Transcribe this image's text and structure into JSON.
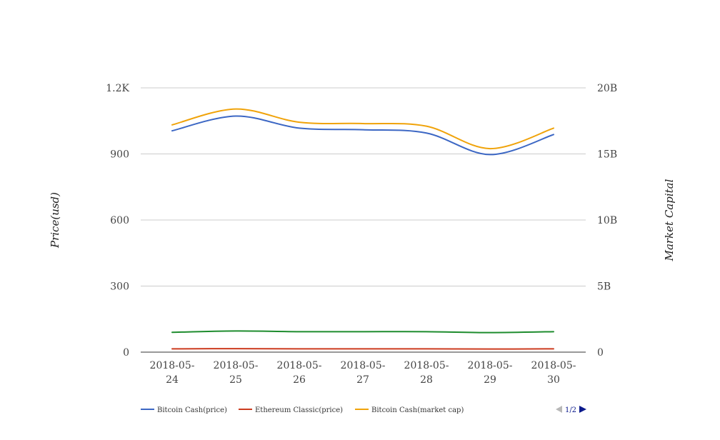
{
  "chart_data": {
    "type": "line",
    "categories": [
      "2018-05-24",
      "2018-05-25",
      "2018-05-26",
      "2018-05-27",
      "2018-05-28",
      "2018-05-29",
      "2018-05-30"
    ],
    "ylabel": "Price(usd)",
    "y2label": "Market Capital",
    "ylim": [
      0,
      1200
    ],
    "y2lim": [
      0,
      20000000000
    ],
    "yticks": [
      "0",
      "300",
      "600",
      "900",
      "1.2K"
    ],
    "y2ticks": [
      "0",
      "5B",
      "10B",
      "15B",
      "20B"
    ],
    "grid": true,
    "legend_position": "bottom-left",
    "series": [
      {
        "name": "Bitcoin Cash(price)",
        "axis": "left",
        "color": "#3c67c4",
        "values": [
          1005,
          1072,
          1017,
          1010,
          995,
          897,
          988
        ]
      },
      {
        "name": "Ethereum Classic(price)",
        "axis": "left",
        "color": "#cc3b1f",
        "values": [
          15,
          16,
          15,
          15,
          15,
          14,
          15
        ]
      },
      {
        "name": "Bitcoin Cash(market cap)",
        "axis": "right",
        "color": "#f0a30a",
        "values": [
          17200000000,
          18400000000,
          17400000000,
          17300000000,
          17100000000,
          15400000000,
          16950000000
        ]
      },
      {
        "axis": "right",
        "color": "#1e8c2e",
        "values": [
          1500000000,
          1600000000,
          1550000000,
          1550000000,
          1550000000,
          1480000000,
          1550000000
        ]
      }
    ],
    "pager": "1/2"
  }
}
